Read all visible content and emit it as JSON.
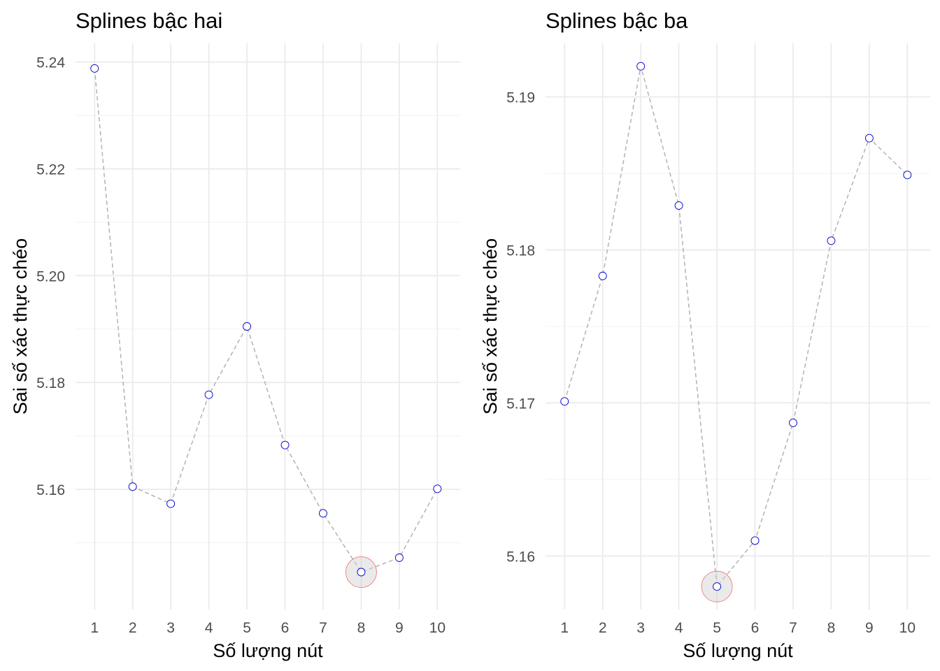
{
  "chart_data": [
    {
      "type": "line",
      "title": "Splines bậc hai",
      "xlabel": "Số lượng nút",
      "ylabel": "Sai số xác thực chéo",
      "x": [
        1,
        2,
        3,
        4,
        5,
        6,
        7,
        8,
        9,
        10
      ],
      "values": [
        5.2388,
        5.1605,
        5.1573,
        5.1777,
        5.1905,
        5.1683,
        5.1555,
        5.1445,
        5.1472,
        5.1601
      ],
      "xlim": [
        0.5,
        10.6
      ],
      "ylim": [
        5.1375,
        5.2435
      ],
      "x_ticks": [
        "1",
        "2",
        "3",
        "4",
        "5",
        "6",
        "7",
        "8",
        "9",
        "10"
      ],
      "y_ticks": [
        "5.16",
        "5.18",
        "5.20",
        "5.22",
        "5.24"
      ],
      "y_tick_values": [
        5.16,
        5.18,
        5.2,
        5.22,
        5.24
      ],
      "y_minor_values": [
        5.15,
        5.17,
        5.19,
        5.21,
        5.23
      ],
      "highlight_x": 8,
      "grid": true,
      "point_color": "#0000cc",
      "line_color": "#b3b3b3",
      "highlight_color": "#ff0000"
    },
    {
      "type": "line",
      "title": "Splines bậc ba",
      "xlabel": "Số lượng nút",
      "ylabel": "Sai số xác thực chéo",
      "x": [
        1,
        2,
        3,
        4,
        5,
        6,
        7,
        8,
        9,
        10
      ],
      "values": [
        5.1701,
        5.1783,
        5.192,
        5.1829,
        5.158,
        5.161,
        5.1687,
        5.1806,
        5.1873,
        5.1849
      ],
      "xlim": [
        0.5,
        10.6
      ],
      "ylim": [
        5.1565,
        5.1935
      ],
      "x_ticks": [
        "1",
        "2",
        "3",
        "4",
        "5",
        "6",
        "7",
        "8",
        "9",
        "10"
      ],
      "y_ticks": [
        "5.16",
        "5.17",
        "5.18",
        "5.19"
      ],
      "y_tick_values": [
        5.16,
        5.17,
        5.18,
        5.19
      ],
      "y_minor_values": [
        5.165,
        5.175,
        5.185
      ],
      "highlight_x": 5,
      "grid": true,
      "point_color": "#0000cc",
      "line_color": "#b3b3b3",
      "highlight_color": "#ff0000"
    }
  ]
}
